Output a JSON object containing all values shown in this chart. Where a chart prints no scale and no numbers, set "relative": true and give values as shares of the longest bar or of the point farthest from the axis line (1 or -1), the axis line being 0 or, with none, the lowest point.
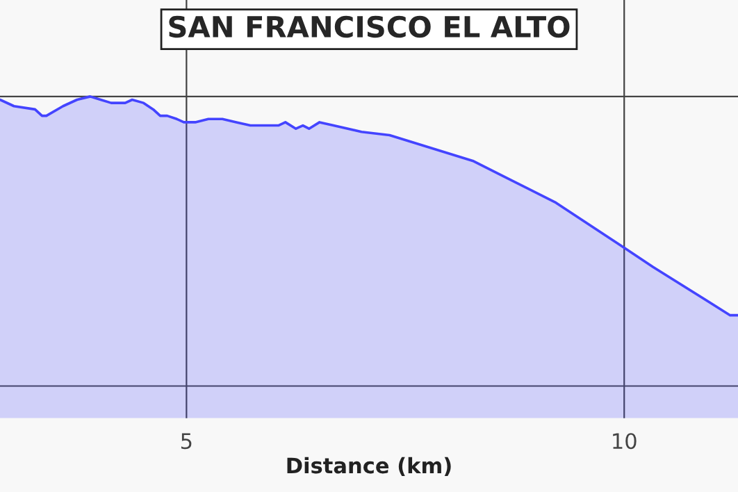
{
  "chart_data": {
    "type": "area",
    "title": "SAN FRANCISCO EL ALTO",
    "xlabel": "Distance (km)",
    "relative": true,
    "xlim": [
      2.87,
      11.3
    ],
    "xticks": [
      5,
      10
    ],
    "grid": true,
    "tick_labels": "x",
    "x": [
      2.87,
      3.03,
      3.27,
      3.35,
      3.4,
      3.59,
      3.75,
      3.9,
      4.02,
      4.14,
      4.3,
      4.38,
      4.51,
      4.62,
      4.7,
      4.78,
      4.89,
      4.97,
      5.1,
      5.25,
      5.41,
      5.57,
      5.73,
      5.89,
      6.05,
      6.13,
      6.25,
      6.33,
      6.4,
      6.52,
      6.68,
      7.0,
      7.32,
      8.27,
      9.22,
      10.0,
      10.33,
      11.21,
      11.3
    ],
    "series": [
      {
        "color": "#4444ff",
        "values": [
          0.99,
          0.97,
          0.96,
          0.94,
          0.94,
          0.97,
          0.99,
          1.0,
          0.99,
          0.98,
          0.98,
          0.99,
          0.98,
          0.96,
          0.94,
          0.94,
          0.93,
          0.92,
          0.92,
          0.93,
          0.93,
          0.92,
          0.91,
          0.91,
          0.91,
          0.92,
          0.9,
          0.91,
          0.9,
          0.92,
          0.91,
          0.89,
          0.88,
          0.8,
          0.67,
          0.53,
          0.47,
          0.32,
          0.32
        ]
      }
    ]
  }
}
